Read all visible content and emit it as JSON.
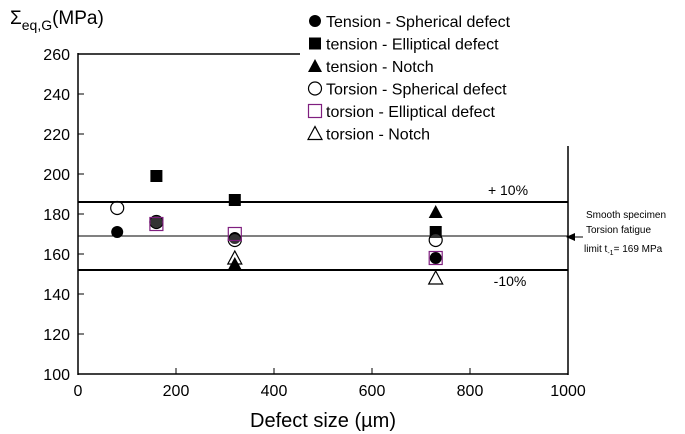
{
  "chart_data": {
    "type": "scatter",
    "title": "",
    "ylabel_main": "Σ",
    "ylabel_sub": "eq,G",
    "ylabel_unit": "(MPa)",
    "xlabel": "Defect size (µm)",
    "xlim": [
      0,
      1000
    ],
    "ylim": [
      100,
      260
    ],
    "xticks": [
      "0",
      "200",
      "400",
      "600",
      "800",
      "1000"
    ],
    "yticks": [
      "100",
      "120",
      "140",
      "160",
      "180",
      "200",
      "220",
      "240",
      "260"
    ],
    "grid": false,
    "legend_position": "top-right",
    "series": [
      {
        "name": "Tension - Spherical defect",
        "marker": "filled-circle",
        "x": [
          80,
          160,
          320,
          730
        ],
        "y": [
          171,
          176,
          168,
          158
        ]
      },
      {
        "name": "tension - Elliptical defect",
        "marker": "filled-square",
        "x": [
          160,
          320,
          730
        ],
        "y": [
          199,
          187,
          171
        ]
      },
      {
        "name": "tension - Notch",
        "marker": "filled-triangle",
        "x": [
          320,
          730
        ],
        "y": [
          155,
          181
        ]
      },
      {
        "name": "Torsion - Spherical defect",
        "marker": "open-circle",
        "x": [
          80,
          160,
          320,
          730
        ],
        "y": [
          183,
          176,
          167,
          167
        ]
      },
      {
        "name": "torsion - Elliptical defect",
        "marker": "open-square",
        "marker_color": "#7f1f7f",
        "x": [
          160,
          320,
          730
        ],
        "y": [
          175,
          170,
          158
        ]
      },
      {
        "name": "torsion - Notch",
        "marker": "open-triangle",
        "x": [
          320,
          730
        ],
        "y": [
          158,
          148
        ]
      }
    ],
    "reference_lines": [
      {
        "y": 186,
        "label": "+ 10%"
      },
      {
        "y": 169,
        "label": ""
      },
      {
        "y": 152,
        "label": "-10%"
      }
    ],
    "side_annotation": {
      "line1": "Smooth specimen",
      "line2": "Torsion fatigue",
      "line3_prefix": "limit t",
      "line3_sub": "-1",
      "line3_suffix": "= 169 MPa"
    }
  }
}
